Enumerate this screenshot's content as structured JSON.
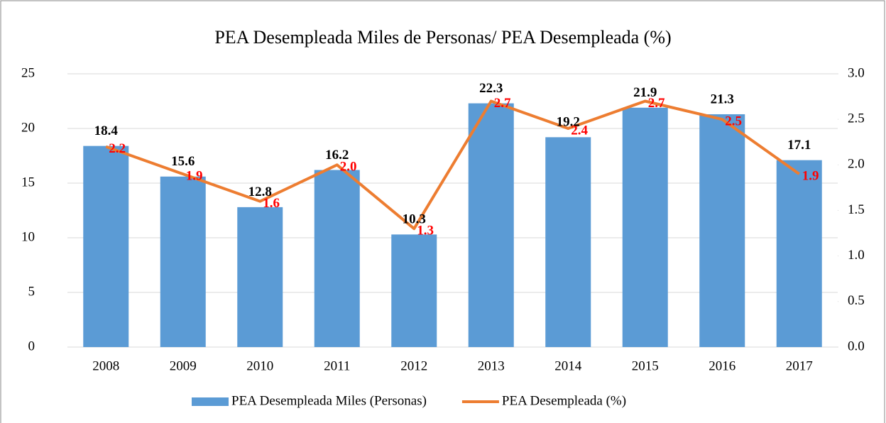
{
  "chart_data": {
    "type": "bar_line",
    "title": "PEA Desempleada Miles de Personas/ PEA Desempleada (%)",
    "categories": [
      "2008",
      "2009",
      "2010",
      "2011",
      "2012",
      "2013",
      "2014",
      "2015",
      "2016",
      "2017"
    ],
    "series": [
      {
        "name": "PEA Desempleada Miles (Personas)",
        "type": "bar",
        "color": "#5b9bd5",
        "values": [
          18.4,
          15.6,
          12.8,
          16.2,
          10.3,
          22.3,
          19.2,
          21.9,
          21.3,
          17.1
        ]
      },
      {
        "name": "PEA Desempleada (%)",
        "type": "line",
        "axis": "y2",
        "color": "#ed7d31",
        "values": [
          2.2,
          1.9,
          1.6,
          2.0,
          1.3,
          2.7,
          2.4,
          2.7,
          2.5,
          1.9
        ],
        "value_labels": [
          "2.2",
          "1.9",
          "1.6",
          "2.0",
          "1.3",
          "2.7",
          "2.4",
          "2.7",
          "2.5",
          "1.9"
        ]
      }
    ],
    "ylim": [
      0,
      25
    ],
    "yticks": [
      0,
      5,
      10,
      15,
      20,
      25
    ],
    "y2lim": [
      0,
      3
    ],
    "y2ticks": [
      {
        "value": 0,
        "label": "0.0"
      },
      0.5,
      {
        "value": 1,
        "label": "1.0"
      },
      1.5,
      {
        "value": 2,
        "label": "2.0"
      },
      2.5,
      {
        "value": 3,
        "label": "3.0"
      }
    ],
    "grid": true,
    "legend": "bottom"
  }
}
